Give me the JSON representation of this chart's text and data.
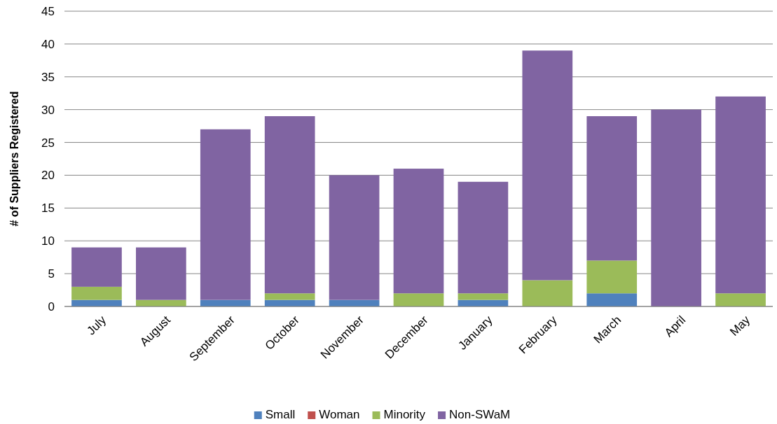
{
  "chart_data": {
    "type": "bar",
    "stacked": true,
    "ylabel": "# of Suppliers Registered",
    "categories": [
      "July",
      "August",
      "September",
      "October",
      "November",
      "December",
      "January",
      "February",
      "March",
      "April",
      "May"
    ],
    "series": [
      {
        "name": "Small",
        "color": "#4f81bd",
        "values": [
          1,
          0,
          1,
          1,
          1,
          0,
          1,
          0,
          2,
          0,
          0
        ]
      },
      {
        "name": "Woman",
        "color": "#c0504d",
        "values": [
          0,
          0,
          0,
          0,
          0,
          0,
          0,
          0,
          0,
          0,
          0
        ]
      },
      {
        "name": "Minority",
        "color": "#9bbb59",
        "values": [
          2,
          1,
          0,
          1,
          0,
          2,
          1,
          4,
          5,
          0,
          2
        ]
      },
      {
        "name": "Non-SWaM",
        "color": "#8064a2",
        "values": [
          6,
          8,
          26,
          27,
          19,
          19,
          17,
          35,
          22,
          30,
          30
        ]
      }
    ],
    "ylim": [
      0,
      45
    ],
    "yticks": [
      0,
      5,
      10,
      15,
      20,
      25,
      30,
      35,
      40,
      45
    ],
    "grid": "y",
    "legend": "bottom"
  }
}
